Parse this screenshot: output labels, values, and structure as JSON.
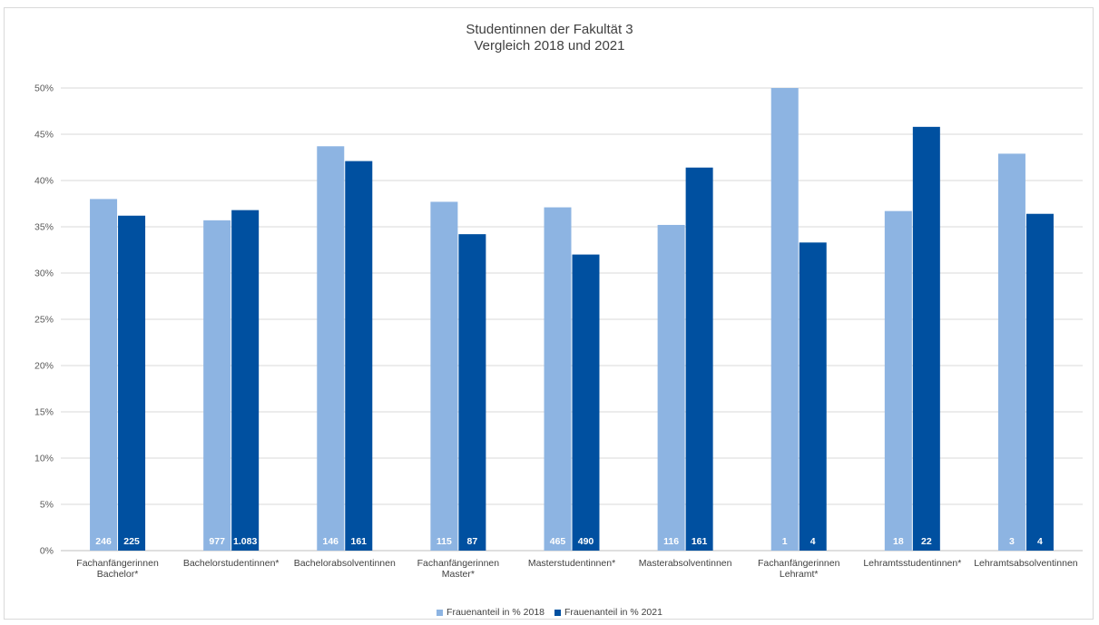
{
  "chart_data": {
    "type": "bar",
    "title_line1": "Studentinnen der Fakultät 3",
    "title_line2": "Vergleich 2018 und 2021",
    "categories": [
      [
        "Fachanfängerinnen",
        "Bachelor*"
      ],
      [
        "Bachelorstudentinnen*"
      ],
      [
        "Bachelorabsolventinnen"
      ],
      [
        "Fachanfängerinnen",
        "Master*"
      ],
      [
        "Masterstudentinnen*"
      ],
      [
        "Masterabsolventinnen"
      ],
      [
        "Fachanfängerinnen",
        "Lehramt*"
      ],
      [
        "Lehramtsstudentinnen*"
      ],
      [
        "Lehramtsabsolventinnen"
      ]
    ],
    "series": [
      {
        "name": "Frauenanteil in % 2018",
        "color": "#8db4e2",
        "values": [
          38.0,
          35.7,
          43.7,
          37.7,
          37.1,
          35.2,
          50.0,
          36.7,
          42.9
        ],
        "labels": [
          "246",
          "977",
          "146",
          "115",
          "465",
          "116",
          "1",
          "18",
          "3"
        ]
      },
      {
        "name": "Frauenanteil in % 2021",
        "color": "#0050a0",
        "values": [
          36.2,
          36.8,
          42.1,
          34.2,
          32.0,
          41.4,
          33.3,
          45.8,
          36.4
        ],
        "labels": [
          "225",
          "1.083",
          "161",
          "87",
          "490",
          "161",
          "4",
          "22",
          "4"
        ]
      }
    ],
    "ylim": [
      0,
      50
    ],
    "yticks": [
      "0%",
      "5%",
      "10%",
      "15%",
      "20%",
      "25%",
      "30%",
      "35%",
      "40%",
      "45%",
      "50%"
    ],
    "ytick_values": [
      0,
      5,
      10,
      15,
      20,
      25,
      30,
      35,
      40,
      45,
      50
    ],
    "grid": true,
    "legend_position": "bottom"
  }
}
